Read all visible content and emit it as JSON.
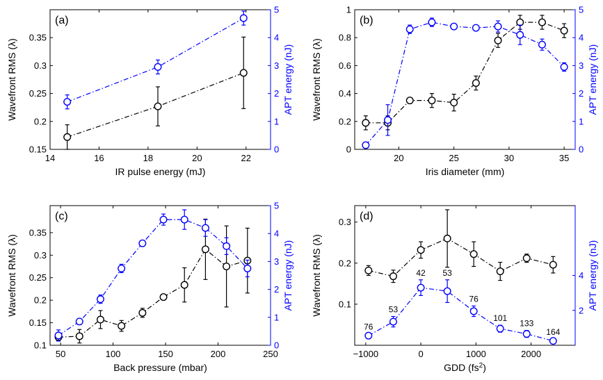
{
  "chart_data": [
    {
      "type": "line",
      "panel_label": "(a)",
      "xlabel": "IR pulse energy (mJ)",
      "ylabel_left": "Wavefront RMS (λ)",
      "ylabel_right": "APT energy (nJ)",
      "xlim": [
        14,
        23
      ],
      "ylim_left": [
        0.15,
        0.4
      ],
      "ylim_right": [
        0,
        5
      ],
      "xticks": [
        14,
        16,
        18,
        20,
        22
      ],
      "yticks_left": [
        0.15,
        0.2,
        0.25,
        0.3,
        0.35
      ],
      "yticks_right": [
        0,
        1,
        2,
        3,
        4,
        5
      ],
      "series": [
        {
          "axis": "left",
          "color": "#000000",
          "x": [
            14.7,
            18.4,
            21.9
          ],
          "y": [
            0.172,
            0.227,
            0.287
          ],
          "err": [
            0.022,
            0.035,
            0.064
          ]
        },
        {
          "axis": "right",
          "color": "#0000ff",
          "x": [
            14.7,
            18.4,
            21.9
          ],
          "y": [
            1.7,
            2.95,
            4.7
          ],
          "err": [
            0.25,
            0.25,
            0.25
          ]
        }
      ]
    },
    {
      "type": "line",
      "panel_label": "(b)",
      "xlabel": "Iris diameter (mm)",
      "ylabel_left": "Wavefront RMS (λ)",
      "ylabel_right": "APT energy (nJ)",
      "xlim": [
        16,
        36
      ],
      "ylim_left": [
        0,
        1
      ],
      "ylim_right": [
        0,
        5
      ],
      "xticks": [
        20,
        25,
        30,
        35
      ],
      "yticks_left": [
        0,
        0.2,
        0.4,
        0.6,
        0.8,
        1
      ],
      "yticks_right": [
        0,
        1,
        2,
        3,
        4,
        5
      ],
      "series": [
        {
          "axis": "left",
          "color": "#000000",
          "x": [
            17,
            19,
            21,
            23,
            25,
            27,
            29,
            31,
            33,
            35
          ],
          "y": [
            0.19,
            0.19,
            0.35,
            0.35,
            0.335,
            0.475,
            0.78,
            0.91,
            0.91,
            0.85
          ],
          "err": [
            0.05,
            0.05,
            0.02,
            0.05,
            0.06,
            0.05,
            0.05,
            0.05,
            0.05,
            0.05
          ]
        },
        {
          "axis": "right",
          "color": "#0000ff",
          "x": [
            17,
            19,
            21,
            23,
            25,
            27,
            29,
            31,
            33,
            35
          ],
          "y": [
            0.15,
            1.05,
            4.3,
            4.55,
            4.4,
            4.35,
            4.4,
            4.1,
            3.75,
            2.95
          ],
          "err": [
            0.1,
            0.55,
            0.15,
            0.15,
            0.1,
            0.1,
            0.2,
            0.35,
            0.2,
            0.15
          ]
        }
      ]
    },
    {
      "type": "line",
      "panel_label": "(c)",
      "xlabel": "Back pressure (mbar)",
      "ylabel_left": "Wavefront RMS (λ)",
      "ylabel_right": "APT energy (nJ)",
      "xlim": [
        40,
        250
      ],
      "ylim_left": [
        0.1,
        0.41
      ],
      "ylim_right": [
        0,
        5
      ],
      "xticks": [
        50,
        100,
        150,
        200,
        250
      ],
      "yticks_left": [
        0.1,
        0.15,
        0.2,
        0.25,
        0.3,
        0.35
      ],
      "yticks_right": [
        0,
        1,
        2,
        3,
        4,
        5
      ],
      "series": [
        {
          "axis": "left",
          "color": "#000000",
          "x": [
            48,
            68,
            88,
            108,
            128,
            148,
            168,
            188,
            208,
            228
          ],
          "y": [
            0.118,
            0.12,
            0.157,
            0.143,
            0.172,
            0.207,
            0.234,
            0.313,
            0.275,
            0.288
          ],
          "err": [
            0.008,
            0.015,
            0.02,
            0.012,
            0.01,
            0.005,
            0.038,
            0.067,
            0.09,
            0.072
          ]
        },
        {
          "axis": "right",
          "color": "#0000ff",
          "x": [
            48,
            68,
            88,
            108,
            128,
            148,
            168,
            188,
            208,
            228
          ],
          "y": [
            0.35,
            0.85,
            1.65,
            2.75,
            3.65,
            4.5,
            4.5,
            4.2,
            3.55,
            2.75
          ],
          "err": [
            0.2,
            0.1,
            0.15,
            0.15,
            0.1,
            0.2,
            0.35,
            0.3,
            0.3,
            0.3
          ]
        }
      ]
    },
    {
      "type": "line",
      "panel_label": "(d)",
      "xlabel": "GDD (fs",
      "xlabel_sup": "2",
      "xlabel_end": ")",
      "ylabel_left": "Wavefront RMS (λ)",
      "ylabel_right": "APT energy (nJ)",
      "xlim": [
        -1200,
        2800
      ],
      "ylim_left": [
        0,
        0.34
      ],
      "ylim_right": [
        0,
        8
      ],
      "xticks": [
        -1000,
        0,
        1000,
        2000
      ],
      "xtick_labels": [
        "−1000",
        "0",
        "1000",
        "2000"
      ],
      "yticks_left": [
        0.1,
        0.2,
        0.3
      ],
      "yticks_right": [
        2,
        4
      ],
      "series": [
        {
          "axis": "left",
          "color": "#000000",
          "x": [
            -950,
            -500,
            0,
            480,
            960,
            1440,
            1920,
            2400
          ],
          "y": [
            0.182,
            0.168,
            0.232,
            0.26,
            0.222,
            0.18,
            0.212,
            0.196
          ],
          "err": [
            0.012,
            0.015,
            0.02,
            0.07,
            0.03,
            0.022,
            0.01,
            0.02
          ]
        },
        {
          "axis": "right",
          "color": "#0000ff",
          "x": [
            -950,
            -500,
            0,
            480,
            960,
            1440,
            1920,
            2400
          ],
          "y": [
            0.55,
            1.35,
            3.3,
            3.1,
            1.95,
            0.95,
            0.65,
            0.25
          ],
          "err": [
            0.1,
            0.3,
            0.45,
            0.65,
            0.3,
            0.2,
            0.2,
            0.1
          ]
        }
      ],
      "annotations": {
        "x": [
          -950,
          -500,
          0,
          480,
          960,
          1440,
          1920,
          2400
        ],
        "labels": [
          "76",
          "53",
          "42",
          "53",
          "76",
          "101",
          "133",
          "164"
        ]
      }
    }
  ]
}
